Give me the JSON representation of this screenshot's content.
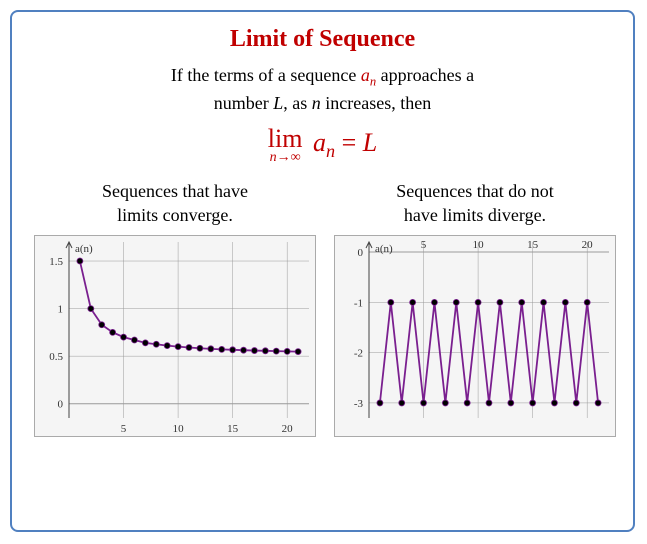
{
  "title": "Limit of Sequence",
  "description": {
    "line1_pre": "If the terms of a sequence ",
    "an_a": "a",
    "an_n": "n",
    "line1_post": " approaches a",
    "line2_pre": "number ",
    "L": "L",
    "line2_mid": ", as ",
    "n_var": "n",
    "line2_post": " increases, then"
  },
  "equation": {
    "lim": "lim",
    "arrow": "n→∞",
    "a": "a",
    "sub_n": "n",
    "eq": " = ",
    "rhs": "L"
  },
  "left_chart": {
    "caption_l1": "Sequences that have",
    "caption_l2": "limits converge.",
    "ylabel": "a(n)",
    "xlim": [
      0,
      22
    ],
    "ylim": [
      -0.15,
      1.7
    ],
    "yticks": [
      0,
      0.5,
      1,
      1.5
    ],
    "xticks": [
      5,
      10,
      15,
      20
    ],
    "points_x": [
      1,
      2,
      3,
      4,
      5,
      6,
      7,
      8,
      9,
      10,
      11,
      12,
      13,
      14,
      15,
      16,
      17,
      18,
      19,
      20,
      21
    ],
    "points_y": [
      1.5,
      1.0,
      0.83,
      0.75,
      0.7,
      0.67,
      0.64,
      0.625,
      0.611,
      0.6,
      0.591,
      0.583,
      0.577,
      0.571,
      0.567,
      0.563,
      0.559,
      0.556,
      0.553,
      0.55,
      0.548
    ],
    "line_color": "#7a1f8f",
    "point_fill": "#000000",
    "grid_color": "#9a9a9a",
    "bg_color": "#f5f5f5",
    "axis_color": "#444444"
  },
  "right_chart": {
    "caption_l1": "Sequences that do not",
    "caption_l2": "have limits diverge.",
    "ylabel": "a(n)",
    "xlim": [
      0,
      22
    ],
    "ylim": [
      -3.3,
      0.2
    ],
    "yticks": [
      0,
      -1,
      -2,
      -3
    ],
    "xticks": [
      5,
      10,
      15,
      20
    ],
    "points_x": [
      1,
      2,
      3,
      4,
      5,
      6,
      7,
      8,
      9,
      10,
      11,
      12,
      13,
      14,
      15,
      16,
      17,
      18,
      19,
      20,
      21
    ],
    "points_y": [
      -3,
      -1,
      -3,
      -1,
      -3,
      -1,
      -3,
      -1,
      -3,
      -1,
      -3,
      -1,
      -3,
      -1,
      -3,
      -1,
      -3,
      -1,
      -3,
      -1,
      -3
    ],
    "line_color": "#7a1f8f",
    "point_fill": "#000000",
    "grid_color": "#9a9a9a",
    "bg_color": "#f5f5f5",
    "axis_color": "#444444"
  }
}
